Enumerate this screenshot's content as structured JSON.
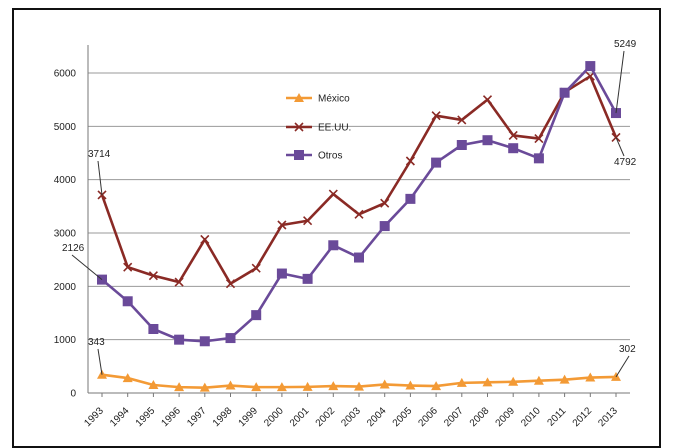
{
  "chart_data": {
    "type": "line",
    "title": "",
    "xlabel": "",
    "ylabel": "",
    "ylim": [
      0,
      6500
    ],
    "yticks": [
      0,
      1000,
      2000,
      3000,
      4000,
      5000,
      6000
    ],
    "grid": true,
    "legend_position": "top-center",
    "categories": [
      "1993",
      "1994",
      "1995",
      "1996",
      "1997",
      "1998",
      "1999",
      "2000",
      "2001",
      "2002",
      "2003",
      "2004",
      "2005",
      "2006",
      "2007",
      "2008",
      "2009",
      "2010",
      "2011",
      "2012",
      "2013"
    ],
    "series": [
      {
        "name": "México",
        "color": "#f39a35",
        "marker": "triangle",
        "values": [
          343,
          280,
          150,
          110,
          100,
          140,
          110,
          110,
          115,
          130,
          120,
          160,
          140,
          130,
          190,
          200,
          210,
          230,
          250,
          290,
          302
        ]
      },
      {
        "name": "EE.UU.",
        "color": "#8a2a25",
        "marker": "x",
        "values": [
          3714,
          2360,
          2200,
          2080,
          2880,
          2050,
          2340,
          3150,
          3230,
          3730,
          3350,
          3560,
          4350,
          5200,
          5120,
          5500,
          4830,
          4770,
          5640,
          5940,
          4792
        ]
      },
      {
        "name": "Otros",
        "color": "#6a4a99",
        "marker": "square",
        "values": [
          2126,
          1720,
          1200,
          1000,
          970,
          1030,
          1460,
          2240,
          2140,
          2770,
          2540,
          3130,
          3640,
          4320,
          4650,
          4740,
          4590,
          4400,
          5630,
          6130,
          5249
        ]
      }
    ],
    "annotations": [
      {
        "text": "3714",
        "series": "EE.UU.",
        "category": "1993"
      },
      {
        "text": "2126",
        "series": "Otros",
        "category": "1993"
      },
      {
        "text": "343",
        "series": "México",
        "category": "1993"
      },
      {
        "text": "5249",
        "series": "Otros",
        "category": "2013"
      },
      {
        "text": "4792",
        "series": "EE.UU.",
        "category": "2013"
      },
      {
        "text": "302",
        "series": "México",
        "category": "2013"
      }
    ]
  }
}
